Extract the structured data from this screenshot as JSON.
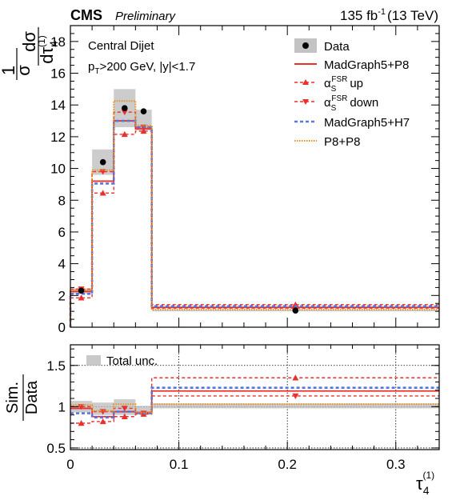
{
  "header": {
    "experiment": "CMS",
    "status": "Preliminary",
    "lumi": "135 fb",
    "lumi_sup": "-1",
    "energy": "(13 TeV)"
  },
  "annotations": {
    "region": "Central Dijet",
    "cut_pt_p": "p",
    "cut_pt_sub": "T",
    "cut_rest": ">200 GeV, |y|<1.7"
  },
  "axes": {
    "top_ylabel_num": "1",
    "top_ylabel_den": "σ",
    "top_ylabel_dnum": "dσ",
    "top_ylabel_dden": "dτ",
    "top_ylabel_sub": "4",
    "top_ylabel_sup": "(1)",
    "bottom_ylabel_num": "Sim.",
    "bottom_ylabel_den": "Data",
    "xlabel": "τ",
    "xlabel_sub": "4",
    "xlabel_sup": "(1)"
  },
  "legend": {
    "data": "Data",
    "madgraph_p8": "MadGraph5+P8",
    "fsr_up_main": "α",
    "fsr_up_sub": "S",
    "fsr_up_sup": "FSR",
    "fsr_up_rest": "up",
    "fsr_down_main": "α",
    "fsr_down_sub": "S",
    "fsr_down_sup": "FSR",
    "fsr_down_rest": "down",
    "madgraph_h7": "MadGraph5+H7",
    "p8p8": "P8+P8",
    "total_unc": "Total unc."
  },
  "colors": {
    "madgraph_p8": "#e8302f",
    "fsr": "#e8302f",
    "madgraph_h7": "#5577dd",
    "p8p8": "#e8901c",
    "unc_band": "#bbbbbb"
  },
  "chart_data": [
    {
      "type": "histogram",
      "bin_edges": [
        0,
        0.02,
        0.04,
        0.06,
        0.075,
        0.34
      ],
      "xlim": [
        0,
        0.34
      ],
      "ylim": [
        0,
        19
      ],
      "yticks": [
        "0",
        "2",
        "4",
        "6",
        "8",
        "10",
        "12",
        "14",
        "16",
        "18"
      ],
      "xticks": [
        "0",
        "0.1",
        "0.2",
        "0.3"
      ],
      "data": {
        "x": [
          0.01,
          0.03,
          0.05,
          0.0675,
          0.2075
        ],
        "y": [
          2.3,
          10.4,
          13.8,
          13.6,
          1.05
        ],
        "unc_low": [
          2.1,
          9.6,
          12.6,
          12.4,
          1.0
        ],
        "unc_high": [
          2.45,
          11.2,
          15.0,
          13.7,
          1.1
        ]
      },
      "series": [
        {
          "name": "MadGraph5+P8",
          "values": [
            2.25,
            9.2,
            13.0,
            12.5,
            1.25
          ]
        },
        {
          "name": "αS FSR up",
          "values": [
            1.85,
            8.45,
            12.15,
            12.35,
            1.42
          ]
        },
        {
          "name": "αS FSR down",
          "values": [
            2.4,
            9.8,
            13.55,
            12.6,
            1.2
          ]
        },
        {
          "name": "MadGraph5+H7",
          "values": [
            2.1,
            9.05,
            13.0,
            12.6,
            1.32
          ]
        },
        {
          "name": "P8+P8",
          "values": [
            2.35,
            9.9,
            14.25,
            12.7,
            1.1
          ]
        }
      ]
    },
    {
      "type": "ratio",
      "bin_edges": [
        0,
        0.02,
        0.04,
        0.06,
        0.075,
        0.34
      ],
      "xlim": [
        0,
        0.34
      ],
      "ylim": [
        0.48,
        1.75
      ],
      "yticks": [
        "0.5",
        "1",
        "1.5"
      ],
      "xticks": [
        "0",
        "0.1",
        "0.2",
        "0.3"
      ],
      "unc_band": {
        "low": [
          0.93,
          0.9,
          0.9,
          0.92,
          0.98
        ],
        "high": [
          1.07,
          1.05,
          1.09,
          1.01,
          1.04
        ]
      },
      "series": [
        {
          "name": "MadGraph5+P8",
          "values": [
            0.98,
            0.88,
            0.94,
            0.93,
            1.19
          ]
        },
        {
          "name": "αS FSR up",
          "values": [
            0.8,
            0.82,
            0.88,
            0.91,
            1.35
          ]
        },
        {
          "name": "αS FSR down",
          "values": [
            1.0,
            0.94,
            0.98,
            0.92,
            1.13
          ]
        },
        {
          "name": "MadGraph5+H7",
          "values": [
            0.92,
            0.87,
            0.94,
            0.92,
            1.23
          ]
        },
        {
          "name": "P8+P8",
          "values": [
            1.02,
            0.95,
            1.03,
            0.93,
            1.03
          ]
        }
      ]
    }
  ]
}
